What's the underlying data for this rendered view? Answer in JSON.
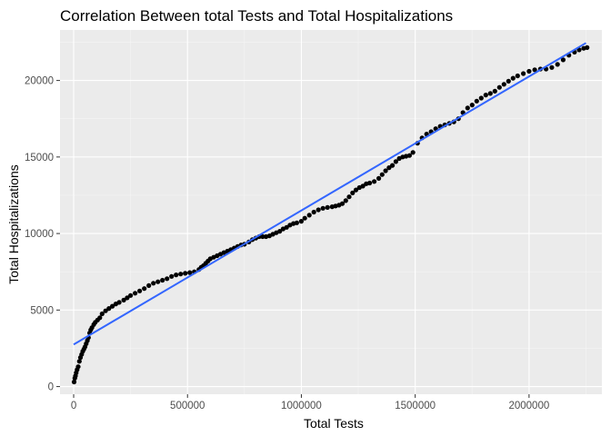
{
  "chart_data": {
    "type": "scatter",
    "title": "Correlation Between total Tests and Total Hospitalizations",
    "xlabel": "Total Tests",
    "ylabel": "Total Hospitalizations",
    "xlim": [
      -60000,
      2320000
    ],
    "ylim": [
      -500,
      23300
    ],
    "x_ticks": [
      0,
      500000,
      1000000,
      1500000,
      2000000
    ],
    "x_tick_labels": [
      "0",
      "500000",
      "1000000",
      "1500000",
      "2000000"
    ],
    "y_ticks": [
      0,
      5000,
      10000,
      15000,
      20000
    ],
    "y_tick_labels": [
      "0",
      "5000",
      "10000",
      "15000",
      "20000"
    ],
    "grid": true,
    "colors": {
      "panel_background": "#ebebeb",
      "grid_major": "#ffffff",
      "grid_minor": "#f5f5f5",
      "points": "#000000",
      "fit_line": "#3366ff",
      "tick_text": "#4d4d4d",
      "tick_marks": "#333333"
    },
    "fit_line": {
      "method": "lm",
      "x": [
        0,
        2250000
      ],
      "y": [
        2750,
        22450
      ]
    },
    "series": [
      {
        "points": [
          [
            2000,
            300
          ],
          [
            5000,
            550
          ],
          [
            8000,
            700
          ],
          [
            11000,
            900
          ],
          [
            15000,
            1100
          ],
          [
            20000,
            1300
          ],
          [
            25000,
            1650
          ],
          [
            30000,
            1900
          ],
          [
            35000,
            2100
          ],
          [
            40000,
            2300
          ],
          [
            45000,
            2450
          ],
          [
            50000,
            2600
          ],
          [
            55000,
            2800
          ],
          [
            60000,
            3000
          ],
          [
            65000,
            3200
          ],
          [
            70000,
            3500
          ],
          [
            75000,
            3700
          ],
          [
            80000,
            3850
          ],
          [
            88000,
            4050
          ],
          [
            95000,
            4200
          ],
          [
            105000,
            4350
          ],
          [
            115000,
            4500
          ],
          [
            125000,
            4750
          ],
          [
            140000,
            4950
          ],
          [
            155000,
            5100
          ],
          [
            170000,
            5250
          ],
          [
            185000,
            5400
          ],
          [
            200000,
            5500
          ],
          [
            220000,
            5650
          ],
          [
            235000,
            5800
          ],
          [
            250000,
            5950
          ],
          [
            270000,
            6100
          ],
          [
            290000,
            6250
          ],
          [
            310000,
            6400
          ],
          [
            330000,
            6600
          ],
          [
            350000,
            6750
          ],
          [
            370000,
            6850
          ],
          [
            390000,
            6950
          ],
          [
            410000,
            7050
          ],
          [
            430000,
            7200
          ],
          [
            450000,
            7300
          ],
          [
            470000,
            7350
          ],
          [
            490000,
            7400
          ],
          [
            510000,
            7450
          ],
          [
            530000,
            7500
          ],
          [
            550000,
            7650
          ],
          [
            560000,
            7800
          ],
          [
            570000,
            7900
          ],
          [
            580000,
            8050
          ],
          [
            590000,
            8200
          ],
          [
            600000,
            8350
          ],
          [
            615000,
            8450
          ],
          [
            630000,
            8550
          ],
          [
            645000,
            8650
          ],
          [
            660000,
            8750
          ],
          [
            675000,
            8850
          ],
          [
            690000,
            8950
          ],
          [
            705000,
            9050
          ],
          [
            720000,
            9150
          ],
          [
            735000,
            9250
          ],
          [
            750000,
            9300
          ],
          [
            770000,
            9450
          ],
          [
            785000,
            9600
          ],
          [
            800000,
            9700
          ],
          [
            815000,
            9800
          ],
          [
            830000,
            9800
          ],
          [
            845000,
            9800
          ],
          [
            860000,
            9850
          ],
          [
            875000,
            9950
          ],
          [
            890000,
            10050
          ],
          [
            905000,
            10150
          ],
          [
            920000,
            10300
          ],
          [
            935000,
            10400
          ],
          [
            950000,
            10550
          ],
          [
            965000,
            10650
          ],
          [
            980000,
            10700
          ],
          [
            1000000,
            10800
          ],
          [
            1015000,
            11000
          ],
          [
            1035000,
            11200
          ],
          [
            1055000,
            11400
          ],
          [
            1075000,
            11550
          ],
          [
            1095000,
            11650
          ],
          [
            1115000,
            11700
          ],
          [
            1135000,
            11750
          ],
          [
            1150000,
            11800
          ],
          [
            1165000,
            11850
          ],
          [
            1180000,
            11950
          ],
          [
            1195000,
            12150
          ],
          [
            1210000,
            12400
          ],
          [
            1225000,
            12650
          ],
          [
            1240000,
            12850
          ],
          [
            1255000,
            13000
          ],
          [
            1270000,
            13100
          ],
          [
            1285000,
            13250
          ],
          [
            1300000,
            13300
          ],
          [
            1320000,
            13400
          ],
          [
            1340000,
            13600
          ],
          [
            1355000,
            13850
          ],
          [
            1370000,
            14100
          ],
          [
            1385000,
            14300
          ],
          [
            1400000,
            14450
          ],
          [
            1415000,
            14700
          ],
          [
            1430000,
            14900
          ],
          [
            1445000,
            15000
          ],
          [
            1460000,
            15050
          ],
          [
            1475000,
            15100
          ],
          [
            1490000,
            15300
          ],
          [
            1510000,
            15900
          ],
          [
            1530000,
            16250
          ],
          [
            1550000,
            16500
          ],
          [
            1570000,
            16650
          ],
          [
            1590000,
            16850
          ],
          [
            1610000,
            17000
          ],
          [
            1630000,
            17100
          ],
          [
            1650000,
            17200
          ],
          [
            1670000,
            17300
          ],
          [
            1690000,
            17500
          ],
          [
            1710000,
            17900
          ],
          [
            1730000,
            18200
          ],
          [
            1750000,
            18400
          ],
          [
            1770000,
            18650
          ],
          [
            1790000,
            18850
          ],
          [
            1810000,
            19050
          ],
          [
            1830000,
            19150
          ],
          [
            1850000,
            19300
          ],
          [
            1870000,
            19550
          ],
          [
            1890000,
            19750
          ],
          [
            1910000,
            19950
          ],
          [
            1930000,
            20150
          ],
          [
            1950000,
            20300
          ],
          [
            1975000,
            20450
          ],
          [
            2000000,
            20600
          ],
          [
            2025000,
            20700
          ],
          [
            2050000,
            20750
          ],
          [
            2075000,
            20750
          ],
          [
            2100000,
            20850
          ],
          [
            2125000,
            21050
          ],
          [
            2150000,
            21350
          ],
          [
            2175000,
            21650
          ],
          [
            2200000,
            21850
          ],
          [
            2220000,
            22000
          ],
          [
            2240000,
            22100
          ],
          [
            2255000,
            22150
          ]
        ]
      }
    ]
  }
}
